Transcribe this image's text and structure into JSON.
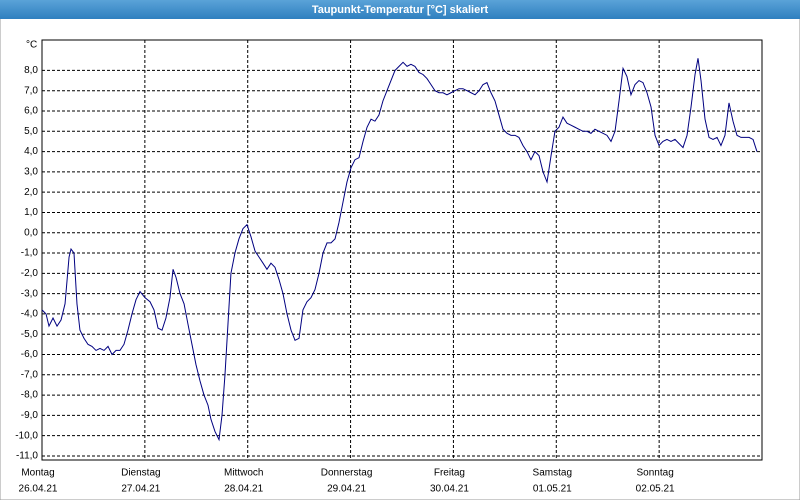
{
  "chart_data": {
    "type": "line",
    "title": "Taupunkt-Temperatur [°C] skaliert",
    "y_unit": "°C",
    "color": "#000080",
    "grid": true,
    "xlim": [
      0,
      7
    ],
    "ylim": [
      -11.2,
      9.5
    ],
    "xticks": [
      {
        "value": 0,
        "label": "26.04.21"
      },
      {
        "value": 1,
        "label": "27.04.21"
      },
      {
        "value": 2,
        "label": "28.04.21"
      },
      {
        "value": 3,
        "label": "29.04.21"
      },
      {
        "value": 4,
        "label": "30.04.21"
      },
      {
        "value": 5,
        "label": "01.05.21"
      },
      {
        "value": 6,
        "label": "02.05.21"
      }
    ],
    "weekdays": [
      "Montag",
      "Dienstag",
      "Mittwoch",
      "Donnerstag",
      "Freitag",
      "Samstag",
      "Sonntag"
    ],
    "yticks": [
      {
        "value": 8,
        "label": "8,0"
      },
      {
        "value": 7,
        "label": "7,0"
      },
      {
        "value": 6,
        "label": "6,0"
      },
      {
        "value": 5,
        "label": "5,0"
      },
      {
        "value": 4,
        "label": "4,0"
      },
      {
        "value": 3,
        "label": "3,0"
      },
      {
        "value": 2,
        "label": "2,0"
      },
      {
        "value": 1,
        "label": "1,0"
      },
      {
        "value": 0,
        "label": "0,0"
      },
      {
        "value": -1,
        "label": "-1,0"
      },
      {
        "value": -2,
        "label": "-2,0"
      },
      {
        "value": -3,
        "label": "-3,0"
      },
      {
        "value": -4,
        "label": "-4,0"
      },
      {
        "value": -5,
        "label": "-5,0"
      },
      {
        "value": -6,
        "label": "-6,0"
      },
      {
        "value": -7,
        "label": "-7,0"
      },
      {
        "value": -8,
        "label": "-8,0"
      },
      {
        "value": -9,
        "label": "-9,0"
      },
      {
        "value": -10,
        "label": "-10,0"
      },
      {
        "value": -11,
        "label": "-11,0"
      }
    ],
    "x": [
      0,
      0.039,
      0.068,
      0.107,
      0.146,
      0.185,
      0.224,
      0.263,
      0.282,
      0.311,
      0.34,
      0.369,
      0.408,
      0.447,
      0.486,
      0.525,
      0.564,
      0.603,
      0.642,
      0.681,
      0.72,
      0.758,
      0.797,
      0.836,
      0.875,
      0.914,
      0.953,
      1.001,
      1.05,
      1.089,
      1.128,
      1.167,
      1.205,
      1.244,
      1.274,
      1.303,
      1.342,
      1.381,
      1.419,
      1.458,
      1.497,
      1.536,
      1.575,
      1.614,
      1.643,
      1.682,
      1.721,
      1.75,
      1.779,
      1.808,
      1.837,
      1.876,
      1.915,
      1.954,
      1.993,
      2.032,
      2.071,
      2.11,
      2.149,
      2.187,
      2.226,
      2.265,
      2.304,
      2.343,
      2.382,
      2.421,
      2.46,
      2.499,
      2.537,
      2.576,
      2.615,
      2.654,
      2.693,
      2.732,
      2.771,
      2.81,
      2.849,
      2.887,
      2.926,
      2.965,
      3.004,
      3.043,
      3.082,
      3.121,
      3.16,
      3.199,
      3.237,
      3.276,
      3.315,
      3.354,
      3.393,
      3.432,
      3.471,
      3.51,
      3.549,
      3.587,
      3.626,
      3.665,
      3.704,
      3.743,
      3.782,
      3.821,
      3.86,
      3.899,
      3.937,
      3.976,
      4.015,
      4.054,
      4.093,
      4.132,
      4.171,
      4.21,
      4.249,
      4.287,
      4.326,
      4.365,
      4.404,
      4.443,
      4.482,
      4.521,
      4.56,
      4.599,
      4.637,
      4.676,
      4.715,
      4.754,
      4.793,
      4.832,
      4.871,
      4.91,
      4.949,
      4.987,
      5.026,
      5.065,
      5.104,
      5.143,
      5.182,
      5.221,
      5.26,
      5.299,
      5.337,
      5.376,
      5.415,
      5.454,
      5.493,
      5.532,
      5.571,
      5.61,
      5.649,
      5.687,
      5.726,
      5.765,
      5.804,
      5.843,
      5.882,
      5.921,
      5.96,
      5.999,
      6.037,
      6.076,
      6.115,
      6.154,
      6.193,
      6.232,
      6.271,
      6.31,
      6.349,
      6.378,
      6.407,
      6.446,
      6.485,
      6.524,
      6.563,
      6.601,
      6.64,
      6.679,
      6.718,
      6.757,
      6.796,
      6.835,
      6.874,
      6.913,
      6.951
    ],
    "values": [
      -3.8,
      -4.0,
      -4.6,
      -4.2,
      -4.6,
      -4.3,
      -3.5,
      -1.2,
      -0.8,
      -1.0,
      -3.5,
      -4.8,
      -5.2,
      -5.5,
      -5.6,
      -5.8,
      -5.7,
      -5.8,
      -5.6,
      -6.0,
      -5.8,
      -5.8,
      -5.5,
      -4.8,
      -4.0,
      -3.3,
      -2.9,
      -3.2,
      -3.4,
      -3.8,
      -4.7,
      -4.8,
      -4.2,
      -3.2,
      -1.8,
      -2.2,
      -3.0,
      -3.5,
      -4.5,
      -5.5,
      -6.5,
      -7.3,
      -8.0,
      -8.5,
      -9.2,
      -9.8,
      -10.2,
      -9.0,
      -7.0,
      -4.5,
      -2.0,
      -1.0,
      -0.3,
      0.2,
      0.4,
      -0.2,
      -0.9,
      -1.2,
      -1.5,
      -1.8,
      -1.5,
      -1.7,
      -2.3,
      -3.0,
      -4.0,
      -4.8,
      -5.3,
      -5.2,
      -3.8,
      -3.4,
      -3.2,
      -2.8,
      -2.0,
      -1.0,
      -0.5,
      -0.5,
      -0.3,
      0.5,
      1.5,
      2.5,
      3.2,
      3.6,
      3.7,
      4.5,
      5.2,
      5.6,
      5.5,
      5.8,
      6.5,
      7.0,
      7.5,
      8.0,
      8.2,
      8.4,
      8.2,
      8.3,
      8.2,
      7.9,
      7.8,
      7.6,
      7.3,
      7.0,
      6.9,
      6.9,
      6.8,
      6.9,
      7.0,
      7.1,
      7.1,
      7.0,
      6.9,
      6.8,
      7.0,
      7.3,
      7.4,
      6.9,
      6.5,
      5.8,
      5.1,
      4.9,
      4.8,
      4.8,
      4.7,
      4.3,
      4.0,
      3.6,
      4.0,
      3.8,
      3.0,
      2.5,
      3.8,
      5.0,
      5.2,
      5.7,
      5.4,
      5.3,
      5.2,
      5.1,
      5.0,
      5.0,
      4.9,
      5.1,
      5.0,
      4.9,
      4.8,
      4.5,
      5.0,
      6.5,
      8.1,
      7.7,
      6.8,
      7.3,
      7.5,
      7.4,
      6.9,
      6.2,
      4.8,
      4.3,
      4.5,
      4.6,
      4.5,
      4.6,
      4.4,
      4.2,
      4.8,
      6.2,
      7.8,
      8.6,
      7.5,
      5.6,
      4.7,
      4.6,
      4.7,
      4.3,
      4.8,
      6.4,
      5.5,
      4.8,
      4.7,
      4.7,
      4.7,
      4.6,
      4.0
    ]
  }
}
